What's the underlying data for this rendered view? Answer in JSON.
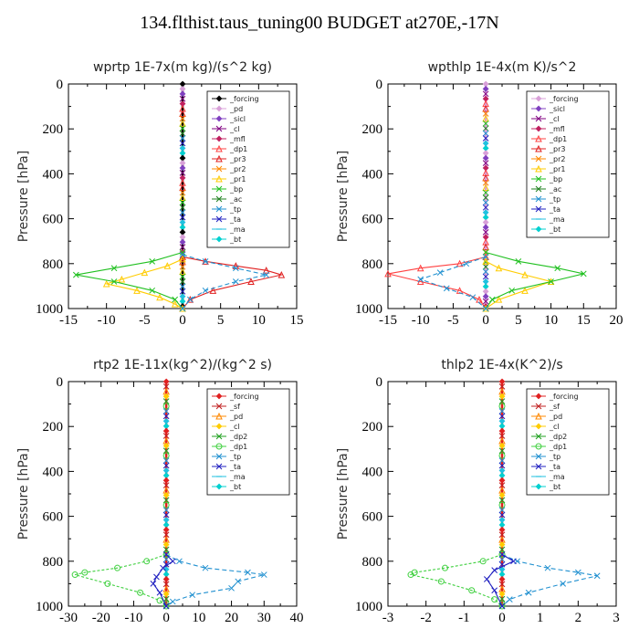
{
  "title": "134.flthist.taus_tuning00  BUDGET at270E,-17N",
  "chart_data": [
    {
      "type": "line",
      "title": "wprtp   1E-7x(m kg)/(s^2 kg)",
      "xlabel": "",
      "ylabel": "Pressure [hPa]",
      "xlim": [
        -15,
        15
      ],
      "ylim": [
        1000,
        0
      ],
      "xticks": [
        -15,
        -10,
        -5,
        0,
        5,
        10,
        15
      ],
      "yticks": [
        0,
        200,
        400,
        600,
        800,
        1000
      ],
      "legend_position": "top-right",
      "series": [
        {
          "name": "_forcing",
          "color": "#000000",
          "marker": "diamond",
          "values": []
        },
        {
          "name": "_pd",
          "color": "#d8a0d8",
          "marker": "diamond",
          "values": []
        },
        {
          "name": "_sicl",
          "color": "#8040c0",
          "marker": "diamond",
          "values": []
        },
        {
          "name": "_cl",
          "color": "#800080",
          "marker": "cross",
          "values": []
        },
        {
          "name": "_mfl",
          "color": "#c02060",
          "marker": "diamond",
          "values": []
        },
        {
          "name": "_dp1",
          "color": "#ff4040",
          "marker": "triangle",
          "values": []
        },
        {
          "name": "_pr3",
          "color": "#e02020",
          "marker": "triangle",
          "values": [
            [
              0,
              770
            ],
            [
              3,
              790
            ],
            [
              7,
              810
            ],
            [
              11,
              830
            ],
            [
              13,
              850
            ],
            [
              9,
              880
            ],
            [
              4,
              920
            ],
            [
              1,
              960
            ],
            [
              0,
              1000
            ]
          ]
        },
        {
          "name": "_pr2",
          "color": "#ff8800",
          "marker": "cross",
          "values": []
        },
        {
          "name": "_pr1",
          "color": "#ffcc00",
          "marker": "triangle",
          "values": [
            [
              0,
              780
            ],
            [
              -2,
              810
            ],
            [
              -5,
              840
            ],
            [
              -8,
              870
            ],
            [
              -10,
              890
            ],
            [
              -6,
              920
            ],
            [
              -3,
              950
            ],
            [
              -1,
              980
            ],
            [
              0,
              1000
            ]
          ]
        },
        {
          "name": "_bp",
          "color": "#20c020",
          "marker": "cross",
          "values": [
            [
              0,
              750
            ],
            [
              -4,
              790
            ],
            [
              -9,
              820
            ],
            [
              -14,
              850
            ],
            [
              -9,
              880
            ],
            [
              -4,
              920
            ],
            [
              -1,
              960
            ],
            [
              0,
              1000
            ]
          ]
        },
        {
          "name": "_ac",
          "color": "#208020",
          "marker": "cross",
          "values": []
        },
        {
          "name": "_tp",
          "color": "#2090d0",
          "marker": "cross",
          "values": [
            [
              0,
              760
            ],
            [
              3,
              790
            ],
            [
              7,
              820
            ],
            [
              11,
              850
            ],
            [
              7,
              880
            ],
            [
              3,
              920
            ],
            [
              1,
              960
            ],
            [
              0,
              1000
            ]
          ]
        },
        {
          "name": "_ta",
          "color": "#2020c0",
          "marker": "cross",
          "values": []
        },
        {
          "name": "_ma",
          "color": "#20c0e0",
          "marker": "dash",
          "values": []
        },
        {
          "name": "_bt",
          "color": "#00d0d0",
          "marker": "diamond",
          "values": []
        }
      ]
    },
    {
      "type": "line",
      "title": "wpthlp   1E-4x(m K)/s^2",
      "xlabel": "",
      "ylabel": "Pressure [hPa]",
      "xlim": [
        -15,
        20
      ],
      "ylim": [
        1000,
        0
      ],
      "xticks": [
        -15,
        -10,
        -5,
        0,
        5,
        10,
        15,
        20
      ],
      "yticks": [
        0,
        200,
        400,
        600,
        800,
        1000
      ],
      "legend_position": "top-right",
      "series": [
        {
          "name": "_forcing",
          "color": "#d8a0d8",
          "marker": "diamond",
          "values": []
        },
        {
          "name": "_sicl",
          "color": "#8040c0",
          "marker": "diamond",
          "values": []
        },
        {
          "name": "_cl",
          "color": "#800080",
          "marker": "cross",
          "values": []
        },
        {
          "name": "_mfl",
          "color": "#c02060",
          "marker": "diamond",
          "values": []
        },
        {
          "name": "_dp1",
          "color": "#ff4040",
          "marker": "triangle",
          "values": [
            [
              0,
              770
            ],
            [
              -4,
              800
            ],
            [
              -10,
              820
            ],
            [
              -15,
              845
            ],
            [
              -10,
              880
            ],
            [
              -4,
              920
            ],
            [
              -1,
              960
            ],
            [
              0,
              1000
            ]
          ]
        },
        {
          "name": "_pr3",
          "color": "#e02020",
          "marker": "triangle",
          "values": []
        },
        {
          "name": "_pr2",
          "color": "#ff8800",
          "marker": "cross",
          "values": []
        },
        {
          "name": "_pr1",
          "color": "#ffcc00",
          "marker": "triangle",
          "values": [
            [
              0,
              790
            ],
            [
              2,
              820
            ],
            [
              6,
              850
            ],
            [
              10,
              880
            ],
            [
              6,
              920
            ],
            [
              2,
              960
            ],
            [
              0,
              1000
            ]
          ]
        },
        {
          "name": "_bp",
          "color": "#20c020",
          "marker": "cross",
          "values": [
            [
              0,
              750
            ],
            [
              5,
              790
            ],
            [
              11,
              820
            ],
            [
              15,
              845
            ],
            [
              10,
              880
            ],
            [
              4,
              920
            ],
            [
              1,
              960
            ],
            [
              0,
              1000
            ]
          ]
        },
        {
          "name": "_ac",
          "color": "#208020",
          "marker": "cross",
          "values": []
        },
        {
          "name": "_tp",
          "color": "#2090d0",
          "marker": "cross",
          "values": [
            [
              0,
              770
            ],
            [
              -3,
              800
            ],
            [
              -7,
              840
            ],
            [
              -10,
              870
            ],
            [
              -6,
              910
            ],
            [
              -2,
              950
            ],
            [
              0,
              1000
            ]
          ]
        },
        {
          "name": "_ta",
          "color": "#2020c0",
          "marker": "cross",
          "values": []
        },
        {
          "name": "_ma",
          "color": "#20c0e0",
          "marker": "dash",
          "values": []
        },
        {
          "name": "_bt",
          "color": "#00d0d0",
          "marker": "diamond",
          "values": []
        }
      ]
    },
    {
      "type": "line",
      "title": "rtp2   1E-11x(kg^2)/(kg^2 s)",
      "xlabel": "",
      "ylabel": "Pressure [hPa]",
      "xlim": [
        -30,
        40
      ],
      "ylim": [
        1000,
        0
      ],
      "xticks": [
        -30,
        -20,
        -10,
        0,
        10,
        20,
        30,
        40
      ],
      "yticks": [
        0,
        200,
        400,
        600,
        800,
        1000
      ],
      "legend_position": "top-right",
      "series": [
        {
          "name": "_forcing",
          "color": "#e02020",
          "marker": "diamond",
          "values": []
        },
        {
          "name": "_sf",
          "color": "#c02020",
          "marker": "cross",
          "values": []
        },
        {
          "name": "_pd",
          "color": "#ff8800",
          "marker": "triangle",
          "values": []
        },
        {
          "name": "_cl",
          "color": "#ffcc00",
          "marker": "diamond",
          "values": []
        },
        {
          "name": "_dp2",
          "color": "#20a020",
          "marker": "cross",
          "values": []
        },
        {
          "name": "_dp1",
          "color": "#40d040",
          "marker": "circle",
          "values": [
            [
              0,
              770
            ],
            [
              -6,
              800
            ],
            [
              -15,
              830
            ],
            [
              -25,
              850
            ],
            [
              -28,
              860
            ],
            [
              -18,
              900
            ],
            [
              -8,
              940
            ],
            [
              -2,
              975
            ],
            [
              0,
              1000
            ]
          ]
        },
        {
          "name": "_tp",
          "color": "#2090d0",
          "marker": "cross",
          "values": [
            [
              0,
              770
            ],
            [
              4,
              800
            ],
            [
              12,
              830
            ],
            [
              25,
              850
            ],
            [
              30,
              860
            ],
            [
              22,
              890
            ],
            [
              20,
              920
            ],
            [
              8,
              950
            ],
            [
              2,
              980
            ],
            [
              0,
              1000
            ]
          ]
        },
        {
          "name": "_ta",
          "color": "#2020c0",
          "marker": "cross",
          "values": [
            [
              0,
              770
            ],
            [
              2,
              800
            ],
            [
              -1,
              830
            ],
            [
              -3,
              870
            ],
            [
              -4,
              900
            ],
            [
              -2,
              940
            ],
            [
              0,
              1000
            ]
          ]
        },
        {
          "name": "_ma",
          "color": "#20c0e0",
          "marker": "dash",
          "values": []
        },
        {
          "name": "_bt",
          "color": "#00d0d0",
          "marker": "diamond",
          "values": []
        }
      ]
    },
    {
      "type": "line",
      "title": "thlp2   1E-4x(K^2)/s",
      "xlabel": "",
      "ylabel": "Pressure [hPa]",
      "xlim": [
        -3.0,
        3.0
      ],
      "ylim": [
        1000,
        0
      ],
      "xticks": [
        -3.0,
        -2.0,
        -1.0,
        0.0,
        1.0,
        2.0,
        3.0
      ],
      "yticks": [
        0,
        200,
        400,
        600,
        800,
        1000
      ],
      "legend_position": "top-right",
      "series": [
        {
          "name": "_forcing",
          "color": "#e02020",
          "marker": "diamond",
          "values": []
        },
        {
          "name": "_sf",
          "color": "#c02020",
          "marker": "cross",
          "values": []
        },
        {
          "name": "_pd",
          "color": "#ff8800",
          "marker": "triangle",
          "values": []
        },
        {
          "name": "_cl",
          "color": "#ffcc00",
          "marker": "diamond",
          "values": []
        },
        {
          "name": "_dp2",
          "color": "#20a020",
          "marker": "cross",
          "values": []
        },
        {
          "name": "_dp1",
          "color": "#40d040",
          "marker": "circle",
          "values": [
            [
              0,
              770
            ],
            [
              -0.5,
              800
            ],
            [
              -1.5,
              830
            ],
            [
              -2.3,
              850
            ],
            [
              -2.4,
              860
            ],
            [
              -1.6,
              890
            ],
            [
              -0.8,
              930
            ],
            [
              -0.2,
              970
            ],
            [
              0,
              1000
            ]
          ]
        },
        {
          "name": "_tp",
          "color": "#2090d0",
          "marker": "cross",
          "values": [
            [
              0,
              770
            ],
            [
              0.4,
              800
            ],
            [
              1.2,
              830
            ],
            [
              2.0,
              850
            ],
            [
              2.5,
              865
            ],
            [
              1.6,
              900
            ],
            [
              0.7,
              940
            ],
            [
              0.2,
              970
            ],
            [
              0,
              1000
            ]
          ]
        },
        {
          "name": "_ta",
          "color": "#2020c0",
          "marker": "cross",
          "values": [
            [
              0,
              770
            ],
            [
              0.3,
              800
            ],
            [
              -0.2,
              840
            ],
            [
              -0.4,
              880
            ],
            [
              -0.2,
              930
            ],
            [
              0,
              1000
            ]
          ]
        },
        {
          "name": "_ma",
          "color": "#20c0e0",
          "marker": "dash",
          "values": []
        },
        {
          "name": "_bt",
          "color": "#00d0d0",
          "marker": "diamond",
          "values": []
        }
      ]
    }
  ]
}
